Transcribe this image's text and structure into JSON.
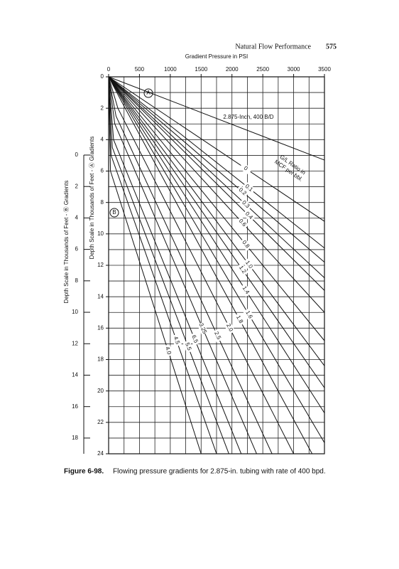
{
  "header": {
    "running_title": "Natural Flow Performance",
    "page_number": "575"
  },
  "chart_data": {
    "type": "line",
    "title": "Gradient Pressure in PSI",
    "ylabel": "Depth Scale in Thousands of Feet - Ⓐ Gradients",
    "y2label": "Depth Scale in Thousands of Feet - Ⓑ Gradients",
    "xlim": [
      0,
      3500
    ],
    "xticks": [
      0,
      500,
      1000,
      1500,
      2000,
      2500,
      3000,
      3500
    ],
    "ylim": [
      0,
      24
    ],
    "yticks": [
      0,
      2,
      4,
      6,
      8,
      10,
      12,
      14,
      16,
      18,
      20,
      22,
      24
    ],
    "y2lim": [
      0,
      19
    ],
    "y2ticks": [
      0,
      2,
      4,
      6,
      8,
      10,
      12,
      14,
      16,
      18
    ],
    "xgrid": [
      0,
      250,
      500,
      750,
      1000,
      1250,
      1500,
      1750,
      2000,
      2250,
      2500,
      2750,
      3000,
      3250,
      3500
    ],
    "ygrid": [
      0,
      1,
      2,
      3,
      4,
      5,
      6,
      7,
      8,
      9,
      10,
      11,
      12,
      13,
      14,
      15,
      16,
      17,
      18,
      19,
      20,
      21,
      22,
      23,
      24
    ],
    "y_reversed": true,
    "color": "#111111",
    "series": [
      {
        "x": [
          0,
          3500
        ],
        "values": [
          0,
          5.3
        ]
      },
      {
        "name": "0",
        "x": [
          0,
          3500
        ],
        "values": [
          0,
          9.2
        ]
      },
      {
        "name": "0.1",
        "x": [
          0,
          3500
        ],
        "values": [
          0,
          10.9
        ]
      },
      {
        "name": "0.2",
        "x": [
          0,
          3500
        ],
        "values": [
          0,
          11.8
        ]
      },
      {
        "name": "0.3",
        "x": [
          0,
          3500
        ],
        "values": [
          0,
          12.8
        ]
      },
      {
        "name": "0.4",
        "x": [
          0,
          3500
        ],
        "values": [
          0,
          13.6
        ]
      },
      {
        "name": "0.6",
        "x": [
          0,
          3500
        ],
        "values": [
          0,
          15.0
        ]
      },
      {
        "name": "0.8",
        "x": [
          0,
          3500
        ],
        "values": [
          0,
          16.8
        ]
      },
      {
        "name": "1.0",
        "x": [
          0,
          3500
        ],
        "values": [
          0,
          18.4
        ]
      },
      {
        "name": "1.2",
        "x": [
          0,
          3500
        ],
        "values": [
          0,
          19.8
        ]
      },
      {
        "name": "1.4",
        "x": [
          0,
          3500
        ],
        "values": [
          0,
          21.4
        ]
      },
      {
        "name": "1.6",
        "x": [
          0,
          3500
        ],
        "values": [
          0,
          23.3
        ]
      },
      {
        "name": "1.8",
        "x": [
          0,
          200,
          3300
        ],
        "values": [
          0,
          1.5,
          24
        ]
      },
      {
        "name": "2.0",
        "x": [
          0,
          150,
          3000
        ],
        "values": [
          0,
          2.0,
          24
        ]
      },
      {
        "name": "2.5",
        "x": [
          0,
          120,
          2650
        ],
        "values": [
          0,
          2.5,
          24
        ]
      },
      {
        "name": "3.25",
        "x": [
          0,
          100,
          2400
        ],
        "values": [
          0,
          3.0,
          24
        ]
      },
      {
        "name": "6.5",
        "x": [
          0,
          80,
          2150
        ],
        "values": [
          0,
          4.0,
          24
        ]
      },
      {
        "name": "5.5",
        "x": [
          0,
          60,
          1950
        ],
        "values": [
          0,
          4.5,
          24
        ]
      },
      {
        "name": "4.5",
        "x": [
          0,
          40,
          1750
        ],
        "values": [
          0,
          5.0,
          24
        ]
      },
      {
        "name": "4.0",
        "x": [
          0,
          30,
          1500
        ],
        "values": [
          0,
          6.0,
          24
        ]
      }
    ],
    "annotations": {
      "marker_a": "A",
      "marker_b": "B",
      "tubing": "2.875-Inch, 400 B/D",
      "ratio_line1": "G/L Ratio in",
      "ratio_line2": "MCF per bbl."
    }
  },
  "caption": {
    "label": "Figure 6-98.",
    "text": "Flowing pressure gradients for 2.875-in. tubing with rate of 400 bpd."
  }
}
